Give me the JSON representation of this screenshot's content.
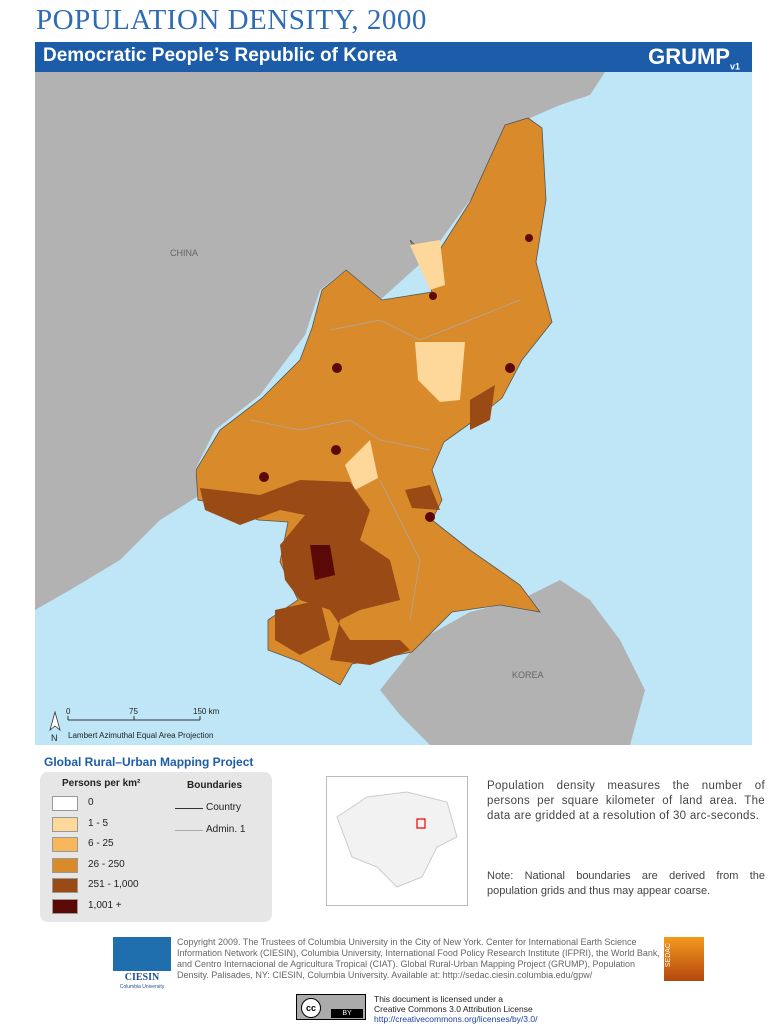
{
  "header": {
    "title": "POPULATION DENSITY, 2000",
    "country": "Democratic People’s Republic of Korea",
    "logo": "GRUMP",
    "logo_version": "v1"
  },
  "map": {
    "labels": [
      "CHINA",
      "KOREA"
    ],
    "north": "N",
    "scale_labels": [
      "0",
      "75",
      "150 km"
    ],
    "projection": "Lambert Azimuthal Equal Area Projection"
  },
  "legend": {
    "project": "Global Rural–Urban Mapping Project",
    "density_title": "Persons per km²",
    "classes": [
      {
        "label": "0",
        "color": "#ffffff"
      },
      {
        "label": "1 - 5",
        "color": "#fdd89a"
      },
      {
        "label": "6 - 25",
        "color": "#f7b75a"
      },
      {
        "label": "26 - 250",
        "color": "#d98a2b"
      },
      {
        "label": "251 - 1,000",
        "color": "#9a4a14"
      },
      {
        "label": "1,001 +",
        "color": "#5a0906"
      }
    ],
    "boundaries_title": "Boundaries",
    "boundaries": [
      {
        "label": "Country",
        "color": "#333333"
      },
      {
        "label": "Admin. 1",
        "color": "#aaaaaa"
      }
    ]
  },
  "description": "Population density measures the number of persons per square kilometer of land area. The data are gridded at a resolution of 30 arc-seconds.",
  "note": "Note: National boundaries are derived from the population grids and thus may appear coarse.",
  "footer": {
    "copyright": "Copyright 2009. The Trustees of Columbia University in the City of New York. Center for International Earth Science Information Network (CIESIN), Columbia University, International Food Policy Research Institute (IFPRI), the World Bank, and Centro Internacional de Agricultura Tropical (CIAT). Global Rural-Urban Mapping Project (GRUMP), Population Density. Palisades, NY: CIESIN, Columbia University. Available at: http://sedac.ciesin.columbia.edu/gpw/",
    "ciesin": "CIESIN",
    "ciesin_sub": "Columbia University",
    "sedac": "SEDAC",
    "license": [
      "This document is licensed under a",
      "Creative Commons 3.0 Attribution License",
      "http://creativecommons.org/licenses/by/3.0/"
    ],
    "cc": "cc",
    "by": "BY"
  }
}
